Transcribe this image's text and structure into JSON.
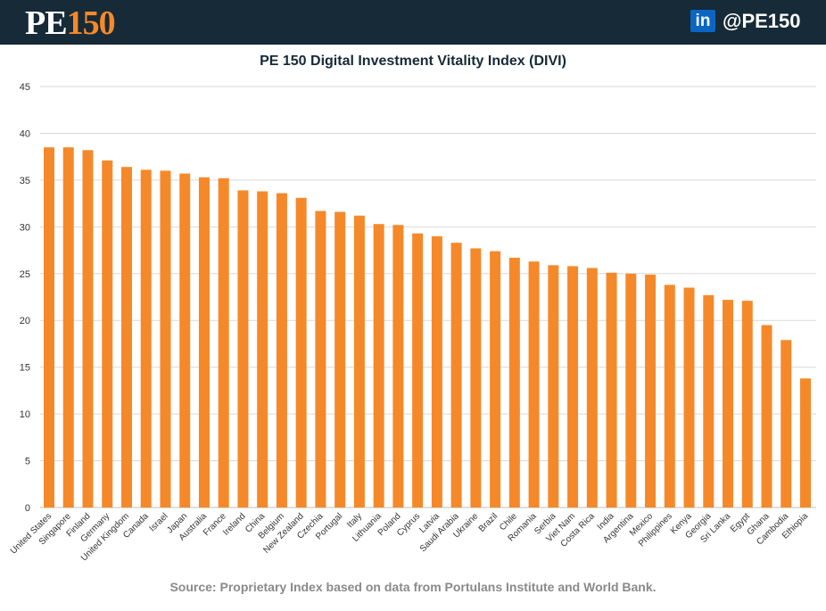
{
  "header": {
    "logo": {
      "pe": "PE",
      "num": "150"
    },
    "linkedin_icon": "in",
    "handle": "@PE150",
    "colors": {
      "background": "#162a37",
      "logo_accent": "#f5892a",
      "linkedin": "#0a66c2"
    }
  },
  "chart_data": {
    "type": "bar",
    "title": "PE 150 Digital Investment Vitality Index (DIVI)",
    "xlabel": "",
    "ylabel": "",
    "ylim": [
      0,
      45
    ],
    "yticks": [
      0,
      5,
      10,
      15,
      20,
      25,
      30,
      35,
      40,
      45
    ],
    "grid": true,
    "bar_color": "#f5892a",
    "categories": [
      "United States",
      "Singapore",
      "Finland",
      "Germany",
      "United Kingdom",
      "Canada",
      "Israel",
      "Japan",
      "Australia",
      "France",
      "Ireland",
      "China",
      "Belgium",
      "New Zealand",
      "Czechia",
      "Portugal",
      "Italy",
      "Lithuania",
      "Poland",
      "Cyprus",
      "Latvia",
      "Saudi Arabia",
      "Ukraine",
      "Brazil",
      "Chile",
      "Romania",
      "Serbia",
      "Viet Nam",
      "Costa Rica",
      "India",
      "Argentina",
      "Mexico",
      "Philippines",
      "Kenya",
      "Georgia",
      "Sri Lanka",
      "Egypt",
      "Ghana",
      "Cambodia",
      "Ethiopia"
    ],
    "values": [
      38.5,
      38.5,
      38.2,
      37.1,
      36.4,
      36.1,
      36.0,
      35.7,
      35.3,
      35.2,
      33.9,
      33.8,
      33.6,
      33.1,
      31.7,
      31.6,
      31.2,
      30.3,
      30.2,
      29.3,
      29.0,
      28.3,
      27.7,
      27.4,
      26.7,
      26.3,
      25.9,
      25.8,
      25.6,
      25.1,
      25.0,
      24.9,
      23.8,
      23.5,
      22.7,
      22.2,
      22.1,
      19.5,
      17.9,
      13.8
    ]
  },
  "source": "Source: Proprietary Index based on data from Portulans Institute and World Bank."
}
